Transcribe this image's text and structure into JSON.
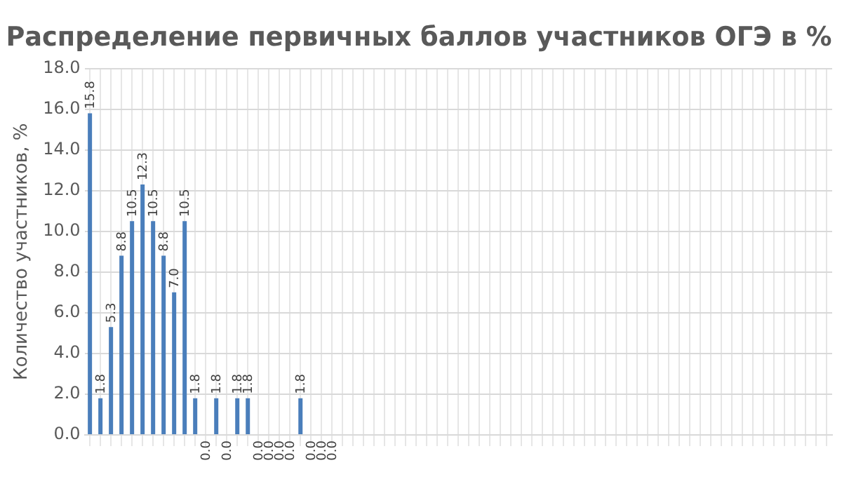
{
  "chart_data": {
    "type": "bar",
    "title": "Распределение первичных баллов участников ОГЭ в %",
    "ylabel": "Количество участников, %",
    "categories": [
      null,
      null,
      null,
      null,
      null,
      null,
      null,
      null,
      null,
      null,
      null,
      null,
      null,
      null,
      null,
      null,
      null,
      null,
      null,
      null,
      null,
      null,
      null,
      null,
      null,
      null,
      null,
      null,
      null,
      null,
      null,
      null,
      null,
      null,
      null,
      null,
      null,
      null,
      null,
      null,
      null,
      null,
      null,
      null,
      null,
      null,
      null,
      null,
      null,
      null,
      null,
      null,
      null,
      null,
      null,
      null,
      null,
      null,
      null,
      null,
      null,
      null,
      null,
      null,
      null,
      null,
      null,
      null,
      null,
      null,
      null
    ],
    "values": [
      15.8,
      1.8,
      5.3,
      8.8,
      10.5,
      12.3,
      10.5,
      8.8,
      7.0,
      10.5,
      1.8,
      0,
      1.8,
      0,
      1.8,
      1.8,
      0,
      0,
      0,
      0,
      1.8,
      0,
      0,
      0,
      null,
      null,
      null,
      null,
      null,
      null,
      null,
      null,
      null,
      null,
      null,
      null,
      null,
      null,
      null,
      null,
      null,
      null,
      null,
      null,
      null,
      null,
      null,
      null,
      null,
      null,
      null,
      null,
      null,
      null,
      null,
      null,
      null,
      null,
      null,
      null,
      null,
      null,
      null,
      null,
      null,
      null,
      null,
      null,
      null,
      null,
      null
    ],
    "value_labels": [
      "15.8",
      "1.8",
      "5.3",
      "8.8",
      "10.5",
      "12.3",
      "10.5",
      "8.8",
      "7.0",
      "10.5",
      "1.8",
      "0.0",
      "1.8",
      "0.0",
      "1.8",
      "1.8",
      "0.0",
      "0.0",
      "0.0",
      "0.0",
      "1.8",
      "0.0",
      "0.0",
      "0.0",
      null,
      null,
      null,
      null,
      null,
      null,
      null,
      null,
      null,
      null,
      null,
      null,
      null,
      null,
      null,
      null,
      null,
      null,
      null,
      null,
      null,
      null,
      null,
      null,
      null,
      null,
      null,
      null,
      null,
      null,
      null,
      null,
      null,
      null,
      null,
      null,
      null,
      null,
      null,
      null,
      null,
      null,
      null,
      null,
      null,
      null,
      null
    ],
    "color": "#4a7ebb",
    "ylim": [
      0,
      18
    ],
    "yticks": [
      {
        "value": 0,
        "label": "0.0"
      },
      {
        "value": 2,
        "label": "2.0"
      },
      {
        "value": 4,
        "label": "4.0"
      },
      {
        "value": 6,
        "label": "6.0"
      },
      {
        "value": 8,
        "label": "8.0"
      },
      {
        "value": 10,
        "label": "10.0"
      },
      {
        "value": 12,
        "label": "12.0"
      },
      {
        "value": 14,
        "label": "14.0"
      },
      {
        "value": 16,
        "label": "16.0"
      },
      {
        "value": 18,
        "label": "18.0"
      }
    ],
    "grid": true,
    "legend": false
  }
}
